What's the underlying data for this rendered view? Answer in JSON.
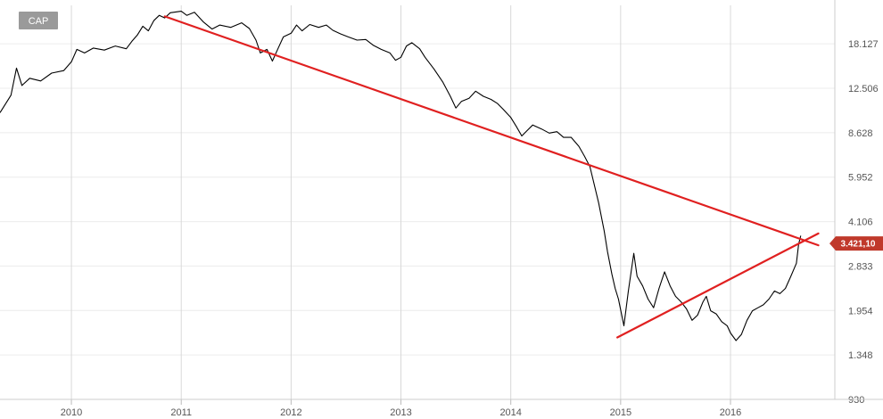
{
  "chart_data": {
    "type": "line",
    "ticker": "CAP",
    "scale": "log",
    "ylim": [
      930,
      25000
    ],
    "xlim": [
      2009.35,
      2016.95
    ],
    "y_ticks": [
      {
        "value": 930,
        "label": "930"
      },
      {
        "value": 1348,
        "label": "1.348"
      },
      {
        "value": 1954,
        "label": "1.954"
      },
      {
        "value": 2833,
        "label": "2.833"
      },
      {
        "value": 4106,
        "label": "4.106"
      },
      {
        "value": 5952,
        "label": "5.952"
      },
      {
        "value": 8628,
        "label": "8.628"
      },
      {
        "value": 12506,
        "label": "12.506"
      },
      {
        "value": 18127,
        "label": "18.127"
      }
    ],
    "x_ticks": [
      {
        "value": 2010,
        "label": "2010"
      },
      {
        "value": 2011,
        "label": "2011"
      },
      {
        "value": 2012,
        "label": "2012"
      },
      {
        "value": 2013,
        "label": "2013"
      },
      {
        "value": 2014,
        "label": "2014"
      },
      {
        "value": 2015,
        "label": "2015"
      },
      {
        "value": 2016,
        "label": "2016"
      }
    ],
    "grid": true,
    "last_price": {
      "value": 3421.1,
      "label": "3.421,10",
      "color": "#c0392b"
    },
    "series": [
      {
        "color": "#000000",
        "points": [
          [
            2009.35,
            10200
          ],
          [
            2009.45,
            11800
          ],
          [
            2009.5,
            14800
          ],
          [
            2009.55,
            12800
          ],
          [
            2009.62,
            13600
          ],
          [
            2009.72,
            13300
          ],
          [
            2009.82,
            14200
          ],
          [
            2009.93,
            14500
          ],
          [
            2010.0,
            15600
          ],
          [
            2010.05,
            17300
          ],
          [
            2010.12,
            16800
          ],
          [
            2010.2,
            17500
          ],
          [
            2010.3,
            17200
          ],
          [
            2010.4,
            17800
          ],
          [
            2010.5,
            17400
          ],
          [
            2010.55,
            18500
          ],
          [
            2010.6,
            19500
          ],
          [
            2010.65,
            21000
          ],
          [
            2010.7,
            20200
          ],
          [
            2010.75,
            22000
          ],
          [
            2010.8,
            23000
          ],
          [
            2010.85,
            22500
          ],
          [
            2010.9,
            23500
          ],
          [
            2011.0,
            23800
          ],
          [
            2011.05,
            23000
          ],
          [
            2011.12,
            23600
          ],
          [
            2011.2,
            21800
          ],
          [
            2011.28,
            20500
          ],
          [
            2011.35,
            21200
          ],
          [
            2011.45,
            20800
          ],
          [
            2011.55,
            21600
          ],
          [
            2011.62,
            20600
          ],
          [
            2011.68,
            18700
          ],
          [
            2011.72,
            16800
          ],
          [
            2011.78,
            17300
          ],
          [
            2011.83,
            15700
          ],
          [
            2011.88,
            17400
          ],
          [
            2011.93,
            19200
          ],
          [
            2012.0,
            19800
          ],
          [
            2012.05,
            21200
          ],
          [
            2012.1,
            20200
          ],
          [
            2012.17,
            21300
          ],
          [
            2012.25,
            20800
          ],
          [
            2012.32,
            21200
          ],
          [
            2012.38,
            20300
          ],
          [
            2012.45,
            19700
          ],
          [
            2012.52,
            19200
          ],
          [
            2012.6,
            18700
          ],
          [
            2012.68,
            18800
          ],
          [
            2012.75,
            17900
          ],
          [
            2012.82,
            17300
          ],
          [
            2012.9,
            16800
          ],
          [
            2012.95,
            15800
          ],
          [
            2013.0,
            16200
          ],
          [
            2013.05,
            17800
          ],
          [
            2013.1,
            18300
          ],
          [
            2013.17,
            17400
          ],
          [
            2013.22,
            16200
          ],
          [
            2013.3,
            14700
          ],
          [
            2013.38,
            13200
          ],
          [
            2013.45,
            11700
          ],
          [
            2013.5,
            10600
          ],
          [
            2013.55,
            11200
          ],
          [
            2013.62,
            11500
          ],
          [
            2013.68,
            12200
          ],
          [
            2013.75,
            11700
          ],
          [
            2013.82,
            11400
          ],
          [
            2013.88,
            11000
          ],
          [
            2013.93,
            10500
          ],
          [
            2014.0,
            9800
          ],
          [
            2014.05,
            9100
          ],
          [
            2014.1,
            8400
          ],
          [
            2014.15,
            8800
          ],
          [
            2014.2,
            9200
          ],
          [
            2014.28,
            8900
          ],
          [
            2014.35,
            8600
          ],
          [
            2014.42,
            8700
          ],
          [
            2014.48,
            8300
          ],
          [
            2014.55,
            8300
          ],
          [
            2014.62,
            7700
          ],
          [
            2014.67,
            7100
          ],
          [
            2014.72,
            6500
          ],
          [
            2014.75,
            5800
          ],
          [
            2014.8,
            4800
          ],
          [
            2014.85,
            3800
          ],
          [
            2014.88,
            3200
          ],
          [
            2014.92,
            2650
          ],
          [
            2014.95,
            2350
          ],
          [
            2014.98,
            2150
          ],
          [
            2015.03,
            1720
          ],
          [
            2015.07,
            2300
          ],
          [
            2015.12,
            3150
          ],
          [
            2015.15,
            2600
          ],
          [
            2015.2,
            2400
          ],
          [
            2015.25,
            2150
          ],
          [
            2015.3,
            2000
          ],
          [
            2015.35,
            2350
          ],
          [
            2015.4,
            2700
          ],
          [
            2015.45,
            2400
          ],
          [
            2015.5,
            2200
          ],
          [
            2015.55,
            2100
          ],
          [
            2015.6,
            1980
          ],
          [
            2015.65,
            1800
          ],
          [
            2015.7,
            1880
          ],
          [
            2015.75,
            2100
          ],
          [
            2015.78,
            2200
          ],
          [
            2015.82,
            1950
          ],
          [
            2015.87,
            1900
          ],
          [
            2015.92,
            1780
          ],
          [
            2015.97,
            1720
          ],
          [
            2016.0,
            1620
          ],
          [
            2016.05,
            1520
          ],
          [
            2016.1,
            1600
          ],
          [
            2016.15,
            1800
          ],
          [
            2016.2,
            1950
          ],
          [
            2016.25,
            2000
          ],
          [
            2016.3,
            2050
          ],
          [
            2016.35,
            2150
          ],
          [
            2016.4,
            2300
          ],
          [
            2016.45,
            2250
          ],
          [
            2016.5,
            2350
          ],
          [
            2016.55,
            2600
          ],
          [
            2016.6,
            2900
          ],
          [
            2016.62,
            3400
          ],
          [
            2016.64,
            3650
          ]
        ]
      }
    ],
    "trendlines": [
      {
        "color": "#e02020",
        "from": [
          2010.85,
          22800
        ],
        "to": [
          2016.8,
          3370
        ]
      },
      {
        "color": "#e02020",
        "from": [
          2014.97,
          1560
        ],
        "to": [
          2016.8,
          3720
        ]
      }
    ]
  }
}
